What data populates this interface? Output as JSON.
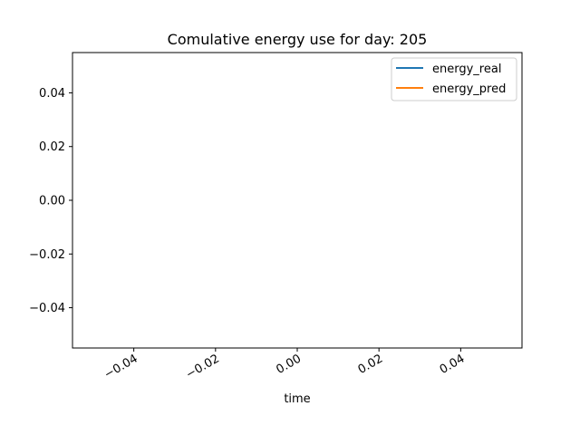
{
  "chart_data": {
    "type": "line",
    "title": "Comulative energy use for day: 205",
    "xlabel": "time",
    "ylabel": "",
    "xlim": [
      -0.055,
      0.055
    ],
    "ylim": [
      -0.055,
      0.055
    ],
    "x_ticks": [
      -0.04,
      -0.02,
      0.0,
      0.02,
      0.04
    ],
    "x_tick_labels": [
      "−0.04",
      "−0.02",
      "0.00",
      "0.02",
      "0.04"
    ],
    "y_ticks": [
      0.04,
      0.02,
      0.0,
      -0.02,
      -0.04
    ],
    "y_tick_labels": [
      "0.04",
      "0.02",
      "0.00",
      "−0.02",
      "−0.04"
    ],
    "grid": false,
    "legend_position": "top-right",
    "series": [
      {
        "name": "energy_real",
        "color": "#1f77b4",
        "x": [],
        "y": []
      },
      {
        "name": "energy_pred",
        "color": "#ff7f0e",
        "x": [],
        "y": []
      }
    ]
  }
}
